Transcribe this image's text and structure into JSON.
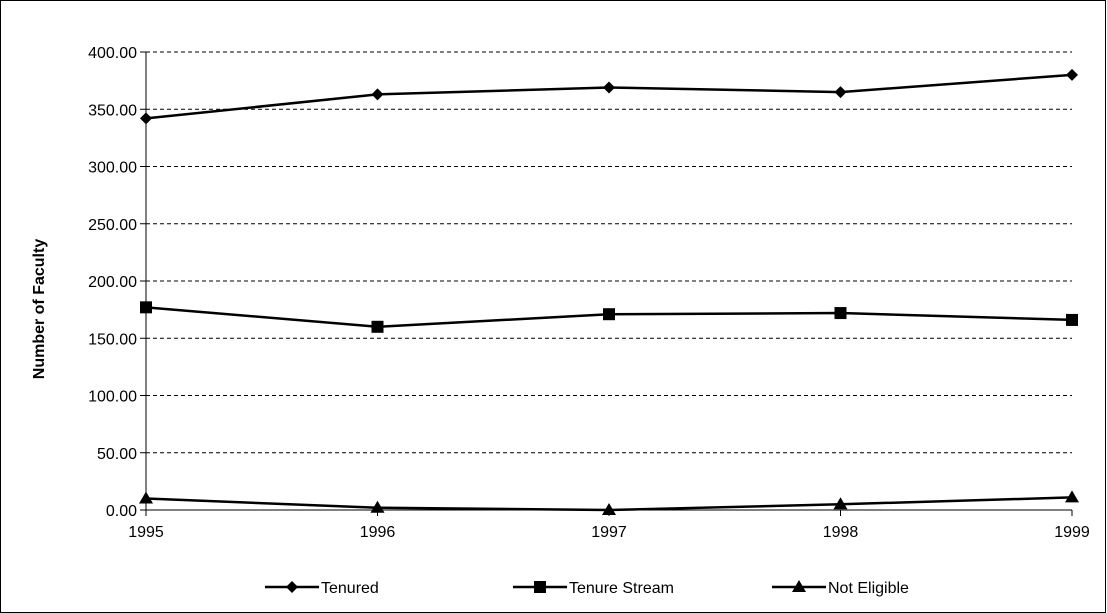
{
  "chart_data": {
    "type": "line",
    "title": "",
    "xlabel": "",
    "ylabel": "Number of Faculty",
    "x": [
      "1995",
      "1996",
      "1997",
      "1998",
      "1999"
    ],
    "ylim": [
      0,
      400
    ],
    "yticks": [
      "0.00",
      "50.00",
      "100.00",
      "150.00",
      "200.00",
      "250.00",
      "300.00",
      "350.00",
      "400.00"
    ],
    "grid": "horizontal dashed",
    "legend_position": "bottom",
    "series": [
      {
        "name": "Tenured",
        "marker": "diamond",
        "values": [
          342,
          363,
          369,
          365,
          380
        ]
      },
      {
        "name": "Tenure Stream",
        "marker": "square",
        "values": [
          177,
          160,
          171,
          172,
          166
        ]
      },
      {
        "name": "Not Eligible",
        "marker": "triangle",
        "values": [
          10,
          2,
          0,
          5,
          11
        ]
      }
    ],
    "colors": {
      "line": "#000000",
      "grid": "#000000",
      "background": "#ffffff"
    }
  }
}
